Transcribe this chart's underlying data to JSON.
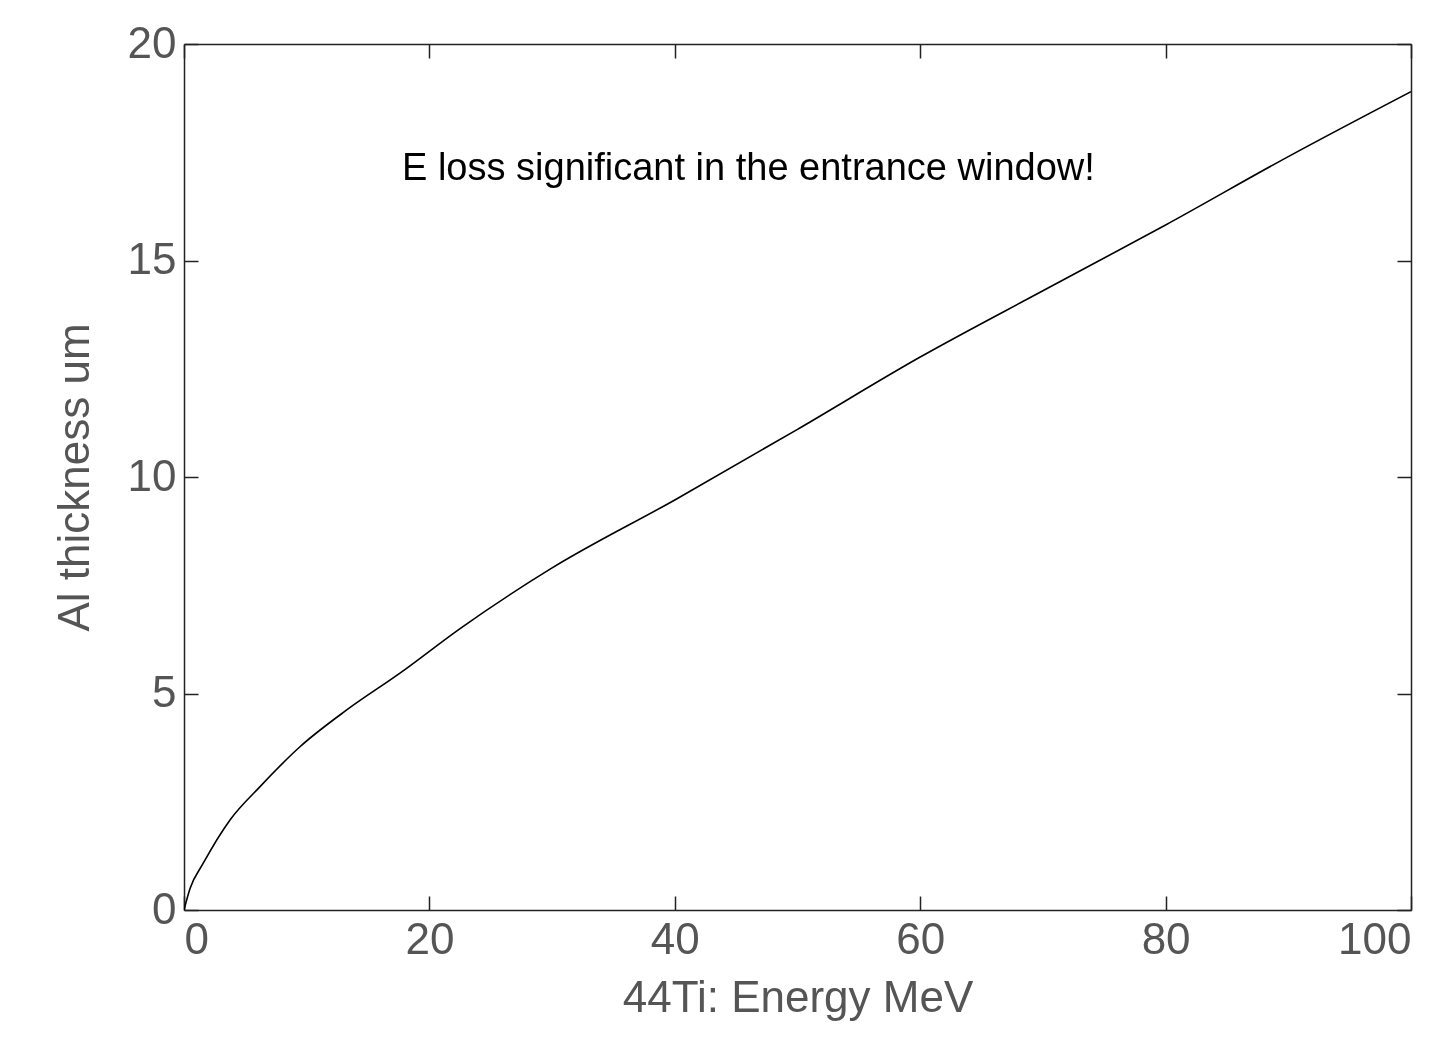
{
  "chart_data": {
    "type": "line",
    "xlabel": "44Ti: Energy MeV",
    "ylabel": "Al thickness um",
    "annotations": [
      "E loss significant in the entrance window!"
    ],
    "x": [
      0,
      0.5,
      1.57,
      3.75,
      6.2,
      9.45,
      13.26,
      17.6,
      22.5,
      30,
      40,
      50,
      60,
      70,
      80,
      90,
      100
    ],
    "series": [
      {
        "color": "#000000",
        "values": [
          0,
          0.5,
          1.08,
          2.08,
          2.85,
          3.77,
          4.62,
          5.47,
          6.5,
          7.9,
          9.47,
          11.1,
          12.77,
          14.3,
          15.82,
          17.4,
          18.9
        ]
      }
    ],
    "xlim": [
      0,
      100
    ],
    "xticks": [
      0,
      20,
      40,
      60,
      80,
      100
    ],
    "ylim": [
      0,
      20
    ],
    "yticks": [
      0,
      5,
      10,
      15,
      20
    ],
    "marker": "none",
    "line_style": "solid"
  }
}
